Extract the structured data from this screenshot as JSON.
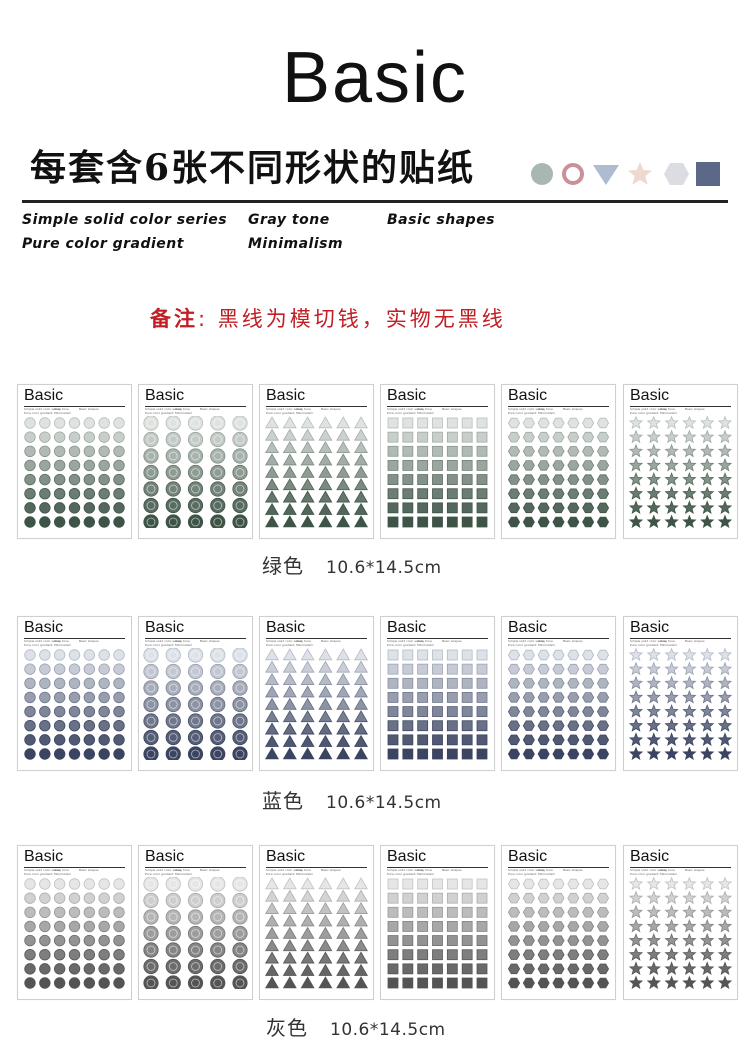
{
  "header": {
    "title": "Basic",
    "subtitle": "每套含6张不同形状的贴纸",
    "shape_icons": [
      "circle-icon",
      "ring-icon",
      "triangle-icon",
      "star-icon",
      "hexagon-icon",
      "square-icon"
    ],
    "shape_colors": [
      "#a9b7b1",
      "#c9919a",
      "#aebccf",
      "#efd8cf",
      "#dcdde2",
      "#5b6887"
    ]
  },
  "tags": {
    "col1_line1": "Simple solid color series",
    "col1_line2": "Pure color gradient",
    "col2_line1": "Gray tone",
    "col2_line2": "Minimalism",
    "col3_line1": "Basic shapes"
  },
  "note": {
    "label": "备注",
    "text": ": 黑线为模切钱，实物无黑线"
  },
  "card_text": {
    "title": "Basic",
    "mini_1": "Simple solid color series",
    "mini_2": "Pure color gradient",
    "mini_3": "Gray tone",
    "mini_4": "Minimalism",
    "mini_5": "Basic shapes"
  },
  "card_shapes": [
    "circle",
    "ring",
    "triangle",
    "square",
    "hexagon",
    "star"
  ],
  "rows": [
    {
      "color_name": "绿色",
      "size": "10.6*14.5cm",
      "light": "#dfe3e0",
      "dark": "#3e5447"
    },
    {
      "color_name": "蓝色",
      "size": "10.6*14.5cm",
      "light": "#dde1e8",
      "dark": "#3b4460"
    },
    {
      "color_name": "灰色",
      "size": "10.6*14.5cm",
      "light": "#e6e6e6",
      "dark": "#545454"
    }
  ]
}
